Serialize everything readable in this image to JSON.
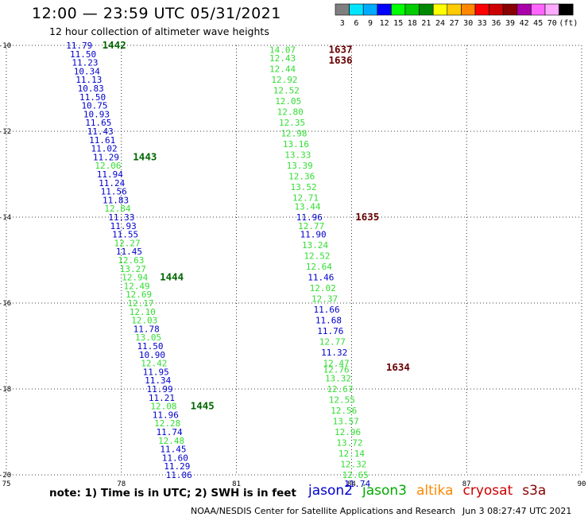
{
  "header": {
    "title": "12:00 — 23:59 UTC 05/31/2021",
    "subtitle": "12 hour collection of altimeter wave heights"
  },
  "colorbar": {
    "labels": [
      "3",
      "6",
      "9",
      "12",
      "15",
      "18",
      "21",
      "24",
      "27",
      "30",
      "33",
      "36",
      "39",
      "42",
      "45",
      "70",
      "(ft)"
    ],
    "colors": [
      "#7f7f7f",
      "#00e5ff",
      "#00aaff",
      "#0000ff",
      "#00ff00",
      "#00cc00",
      "#008800",
      "#ffff00",
      "#ffcc00",
      "#ff8800",
      "#ff0000",
      "#cc0000",
      "#880000",
      "#aa00aa",
      "#ff66ff",
      "#ffaaff",
      "#000000"
    ]
  },
  "footer": {
    "note": "note:  1) Time is in UTC; 2) SWH is in feet",
    "legend": [
      {
        "label": "jason2",
        "color": "#0000cc"
      },
      {
        "label": "jason3",
        "color": "#00aa00"
      },
      {
        "label": "altika",
        "color": "#ff8800"
      },
      {
        "label": "cryosat",
        "color": "#cc0000"
      },
      {
        "label": "s3a",
        "color": "#880000"
      }
    ],
    "credit": "NOAA/NESDIS Center for Satellite Applications and Research",
    "timestamp": "Jun  3 08:27:47 UTC 2021"
  },
  "chart_data": {
    "type": "scatter",
    "xlim": [
      75,
      90
    ],
    "ylim": [
      -20,
      -10
    ],
    "xticks": [
      75,
      78,
      81,
      84,
      87,
      90
    ],
    "yticks": [
      -10,
      -12,
      -14,
      -16,
      -18,
      -20
    ],
    "grid": true,
    "series": [
      {
        "name": "left swath",
        "points": [
          {
            "lon": 76.9,
            "lat": -10.0,
            "v": "11.79",
            "c": "#0000cc"
          },
          {
            "lon": 77.0,
            "lat": -10.2,
            "v": "11.50",
            "c": "#0000cc"
          },
          {
            "lon": 77.05,
            "lat": -10.4,
            "v": "11.23",
            "c": "#0000cc"
          },
          {
            "lon": 77.1,
            "lat": -10.6,
            "v": "10.34",
            "c": "#0000cc"
          },
          {
            "lon": 77.15,
            "lat": -10.8,
            "v": "11.13",
            "c": "#0000cc"
          },
          {
            "lon": 77.2,
            "lat": -11.0,
            "v": "10.83",
            "c": "#0000cc"
          },
          {
            "lon": 77.25,
            "lat": -11.2,
            "v": "11.50",
            "c": "#0000cc"
          },
          {
            "lon": 77.3,
            "lat": -11.4,
            "v": "10.75",
            "c": "#0000cc"
          },
          {
            "lon": 77.35,
            "lat": -11.6,
            "v": "10.93",
            "c": "#0000cc"
          },
          {
            "lon": 77.4,
            "lat": -11.8,
            "v": "11.65",
            "c": "#0000cc"
          },
          {
            "lon": 77.45,
            "lat": -12.0,
            "v": "11.43",
            "c": "#0000cc"
          },
          {
            "lon": 77.5,
            "lat": -12.2,
            "v": "11.61",
            "c": "#0000cc"
          },
          {
            "lon": 77.55,
            "lat": -12.4,
            "v": "11.02",
            "c": "#0000cc"
          },
          {
            "lon": 77.6,
            "lat": -12.6,
            "v": "11.29",
            "c": "#0000cc"
          },
          {
            "lon": 77.65,
            "lat": -12.8,
            "v": "12.06",
            "c": "#33dd33"
          },
          {
            "lon": 77.7,
            "lat": -13.0,
            "v": "11.94",
            "c": "#0000cc"
          },
          {
            "lon": 77.75,
            "lat": -13.2,
            "v": "11.24",
            "c": "#0000cc"
          },
          {
            "lon": 77.8,
            "lat": -13.4,
            "v": "11.56",
            "c": "#0000cc"
          },
          {
            "lon": 77.85,
            "lat": -13.6,
            "v": "11.83",
            "c": "#0000cc"
          },
          {
            "lon": 77.9,
            "lat": -13.8,
            "v": "12.84",
            "c": "#33dd33"
          },
          {
            "lon": 78.0,
            "lat": -14.0,
            "v": "11.33",
            "c": "#0000cc"
          },
          {
            "lon": 78.05,
            "lat": -14.2,
            "v": "11.93",
            "c": "#0000cc"
          },
          {
            "lon": 78.1,
            "lat": -14.4,
            "v": "11.55",
            "c": "#0000cc"
          },
          {
            "lon": 78.15,
            "lat": -14.6,
            "v": "12.27",
            "c": "#33dd33"
          },
          {
            "lon": 78.2,
            "lat": -14.8,
            "v": "11.45",
            "c": "#0000cc"
          },
          {
            "lon": 78.25,
            "lat": -15.0,
            "v": "12.63",
            "c": "#33dd33"
          },
          {
            "lon": 78.3,
            "lat": -15.2,
            "v": "13.27",
            "c": "#33dd33"
          },
          {
            "lon": 78.35,
            "lat": -15.4,
            "v": "12.94",
            "c": "#33dd33"
          },
          {
            "lon": 78.4,
            "lat": -15.6,
            "v": "12.49",
            "c": "#33dd33"
          },
          {
            "lon": 78.45,
            "lat": -15.8,
            "v": "12.69",
            "c": "#33dd33"
          },
          {
            "lon": 78.5,
            "lat": -16.0,
            "v": "12.17",
            "c": "#33dd33"
          },
          {
            "lon": 78.55,
            "lat": -16.2,
            "v": "12.10",
            "c": "#33dd33"
          },
          {
            "lon": 78.6,
            "lat": -16.4,
            "v": "12.03",
            "c": "#33dd33"
          },
          {
            "lon": 78.65,
            "lat": -16.6,
            "v": "11.78",
            "c": "#0000cc"
          },
          {
            "lon": 78.7,
            "lat": -16.8,
            "v": "13.05",
            "c": "#33dd33"
          },
          {
            "lon": 78.75,
            "lat": -17.0,
            "v": "11.50",
            "c": "#0000cc"
          },
          {
            "lon": 78.8,
            "lat": -17.2,
            "v": "10.90",
            "c": "#0000cc"
          },
          {
            "lon": 78.85,
            "lat": -17.4,
            "v": "12.42",
            "c": "#33dd33"
          },
          {
            "lon": 78.9,
            "lat": -17.6,
            "v": "11.95",
            "c": "#0000cc"
          },
          {
            "lon": 78.95,
            "lat": -17.8,
            "v": "11.34",
            "c": "#0000cc"
          },
          {
            "lon": 79.0,
            "lat": -18.0,
            "v": "11.99",
            "c": "#0000cc"
          },
          {
            "lon": 79.05,
            "lat": -18.2,
            "v": "11.21",
            "c": "#0000cc"
          },
          {
            "lon": 79.1,
            "lat": -18.4,
            "v": "12.08",
            "c": "#33dd33"
          },
          {
            "lon": 79.15,
            "lat": -18.6,
            "v": "11.96",
            "c": "#0000cc"
          },
          {
            "lon": 79.2,
            "lat": -18.8,
            "v": "12.28",
            "c": "#33dd33"
          },
          {
            "lon": 79.25,
            "lat": -19.0,
            "v": "11.74",
            "c": "#0000cc"
          },
          {
            "lon": 79.3,
            "lat": -19.2,
            "v": "12.48",
            "c": "#33dd33"
          },
          {
            "lon": 79.35,
            "lat": -19.4,
            "v": "11.45",
            "c": "#0000cc"
          },
          {
            "lon": 79.4,
            "lat": -19.6,
            "v": "11.60",
            "c": "#0000cc"
          },
          {
            "lon": 79.45,
            "lat": -19.8,
            "v": "11.29",
            "c": "#0000cc"
          },
          {
            "lon": 79.5,
            "lat": -20.0,
            "v": "11.06",
            "c": "#0000cc"
          }
        ]
      },
      {
        "name": "right swath",
        "points": [
          {
            "lon": 82.2,
            "lat": -10.1,
            "v": "14.07",
            "c": "#33dd33"
          },
          {
            "lon": 82.2,
            "lat": -10.3,
            "v": "12.43",
            "c": "#33dd33"
          },
          {
            "lon": 82.2,
            "lat": -10.55,
            "v": "12.44",
            "c": "#33dd33"
          },
          {
            "lon": 82.25,
            "lat": -10.8,
            "v": "12.92",
            "c": "#33dd33"
          },
          {
            "lon": 82.3,
            "lat": -11.05,
            "v": "12.52",
            "c": "#33dd33"
          },
          {
            "lon": 82.35,
            "lat": -11.3,
            "v": "12.05",
            "c": "#33dd33"
          },
          {
            "lon": 82.4,
            "lat": -11.55,
            "v": "12.80",
            "c": "#33dd33"
          },
          {
            "lon": 82.45,
            "lat": -11.8,
            "v": "12.35",
            "c": "#33dd33"
          },
          {
            "lon": 82.5,
            "lat": -12.05,
            "v": "12.98",
            "c": "#33dd33"
          },
          {
            "lon": 82.55,
            "lat": -12.3,
            "v": "13.16",
            "c": "#33dd33"
          },
          {
            "lon": 82.6,
            "lat": -12.55,
            "v": "13.33",
            "c": "#33dd33"
          },
          {
            "lon": 82.65,
            "lat": -12.8,
            "v": "13.39",
            "c": "#33dd33"
          },
          {
            "lon": 82.7,
            "lat": -13.05,
            "v": "12.36",
            "c": "#33dd33"
          },
          {
            "lon": 82.75,
            "lat": -13.3,
            "v": "13.52",
            "c": "#33dd33"
          },
          {
            "lon": 82.8,
            "lat": -13.55,
            "v": "12.71",
            "c": "#33dd33"
          },
          {
            "lon": 82.85,
            "lat": -13.75,
            "v": "13.44",
            "c": "#33dd33"
          },
          {
            "lon": 82.9,
            "lat": -14.0,
            "v": "11.96",
            "c": "#0000cc"
          },
          {
            "lon": 82.95,
            "lat": -14.2,
            "v": "12.77",
            "c": "#33dd33"
          },
          {
            "lon": 83.0,
            "lat": -14.4,
            "v": "11.90",
            "c": "#0000cc"
          },
          {
            "lon": 83.05,
            "lat": -14.65,
            "v": "13.24",
            "c": "#33dd33"
          },
          {
            "lon": 83.1,
            "lat": -14.9,
            "v": "12.52",
            "c": "#33dd33"
          },
          {
            "lon": 83.15,
            "lat": -15.15,
            "v": "12.64",
            "c": "#33dd33"
          },
          {
            "lon": 83.2,
            "lat": -15.4,
            "v": "11.46",
            "c": "#0000cc"
          },
          {
            "lon": 83.25,
            "lat": -15.65,
            "v": "12.02",
            "c": "#33dd33"
          },
          {
            "lon": 83.3,
            "lat": -15.9,
            "v": "12.37",
            "c": "#33dd33"
          },
          {
            "lon": 83.35,
            "lat": -16.15,
            "v": "11.66",
            "c": "#0000cc"
          },
          {
            "lon": 83.4,
            "lat": -16.4,
            "v": "11.68",
            "c": "#0000cc"
          },
          {
            "lon": 83.45,
            "lat": -16.65,
            "v": "11.76",
            "c": "#0000cc"
          },
          {
            "lon": 83.5,
            "lat": -16.9,
            "v": "12.77",
            "c": "#33dd33"
          },
          {
            "lon": 83.55,
            "lat": -17.15,
            "v": "11.32",
            "c": "#0000cc"
          },
          {
            "lon": 83.6,
            "lat": -17.4,
            "v": "12.47",
            "c": "#33dd33"
          },
          {
            "lon": 83.6,
            "lat": -17.55,
            "v": "12.76",
            "c": "#33dd33"
          },
          {
            "lon": 83.65,
            "lat": -17.75,
            "v": "13.32",
            "c": "#33dd33"
          },
          {
            "lon": 83.7,
            "lat": -18.0,
            "v": "12.67",
            "c": "#33dd33"
          },
          {
            "lon": 83.75,
            "lat": -18.25,
            "v": "12.55",
            "c": "#33dd33"
          },
          {
            "lon": 83.8,
            "lat": -18.5,
            "v": "12.56",
            "c": "#33dd33"
          },
          {
            "lon": 83.85,
            "lat": -18.75,
            "v": "13.57",
            "c": "#33dd33"
          },
          {
            "lon": 83.9,
            "lat": -19.0,
            "v": "12.96",
            "c": "#33dd33"
          },
          {
            "lon": 83.95,
            "lat": -19.25,
            "v": "13.72",
            "c": "#33dd33"
          },
          {
            "lon": 84.0,
            "lat": -19.5,
            "v": "12.14",
            "c": "#33dd33"
          },
          {
            "lon": 84.05,
            "lat": -19.75,
            "v": "12.32",
            "c": "#33dd33"
          },
          {
            "lon": 84.1,
            "lat": -20.0,
            "v": "12.65",
            "c": "#33dd33"
          },
          {
            "lon": 84.15,
            "lat": -20.2,
            "v": "11.74",
            "c": "#0000cc"
          }
        ]
      }
    ],
    "pass_labels": [
      {
        "text": "1442",
        "lon": 77.5,
        "lat": -10.0,
        "c": "#006600"
      },
      {
        "text": "1443",
        "lon": 78.3,
        "lat": -12.6,
        "c": "#006600"
      },
      {
        "text": "1444",
        "lon": 79.0,
        "lat": -15.4,
        "c": "#006600"
      },
      {
        "text": "1445",
        "lon": 79.8,
        "lat": -18.4,
        "c": "#006600"
      },
      {
        "text": "1637",
        "lon": 83.4,
        "lat": -10.1,
        "c": "#660000"
      },
      {
        "text": "1636",
        "lon": 83.4,
        "lat": -10.35,
        "c": "#660000"
      },
      {
        "text": "1635",
        "lon": 84.1,
        "lat": -14.0,
        "c": "#660000"
      },
      {
        "text": "1634",
        "lon": 84.9,
        "lat": -17.5,
        "c": "#660000"
      }
    ]
  }
}
